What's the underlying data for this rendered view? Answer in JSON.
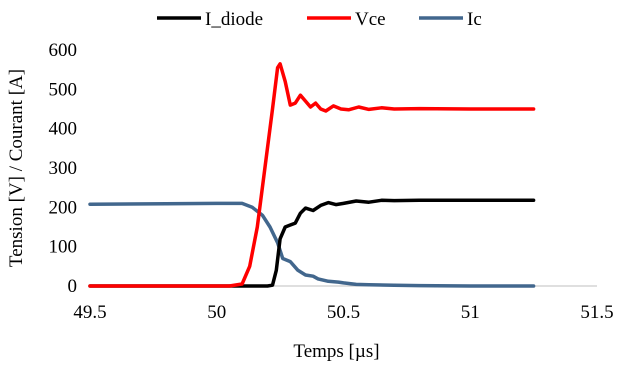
{
  "chart_data": {
    "type": "line",
    "title": "",
    "xlabel": "Temps [µs]",
    "ylabel": "Tension [V] / Courant [A]",
    "xlim": [
      49.5,
      51.5
    ],
    "ylim": [
      0,
      600
    ],
    "x_ticks": [
      49.5,
      50,
      50.5,
      51,
      51.5
    ],
    "x_tick_labels": [
      "49.5",
      "50",
      "50.5",
      "51",
      "51.5"
    ],
    "y_ticks": [
      0,
      100,
      200,
      300,
      400,
      500,
      600
    ],
    "y_tick_labels": [
      "0",
      "100",
      "200",
      "300",
      "400",
      "500",
      "600"
    ],
    "grid": false,
    "legend_position": "top",
    "series": [
      {
        "name": "I_diode",
        "color": "#000000",
        "points": [
          [
            49.5,
            0
          ],
          [
            50.0,
            0
          ],
          [
            50.2,
            0
          ],
          [
            50.22,
            2
          ],
          [
            50.235,
            40
          ],
          [
            50.25,
            120
          ],
          [
            50.27,
            150
          ],
          [
            50.29,
            155
          ],
          [
            50.31,
            160
          ],
          [
            50.33,
            185
          ],
          [
            50.35,
            198
          ],
          [
            50.38,
            192
          ],
          [
            50.41,
            205
          ],
          [
            50.44,
            212
          ],
          [
            50.47,
            207
          ],
          [
            50.5,
            210
          ],
          [
            50.55,
            216
          ],
          [
            50.6,
            213
          ],
          [
            50.65,
            218
          ],
          [
            50.7,
            217
          ],
          [
            50.8,
            218
          ],
          [
            51.0,
            218
          ],
          [
            51.25,
            218
          ]
        ]
      },
      {
        "name": "Vce",
        "color": "#ff0000",
        "points": [
          [
            49.5,
            0
          ],
          [
            50.05,
            0
          ],
          [
            50.1,
            5
          ],
          [
            50.13,
            50
          ],
          [
            50.16,
            150
          ],
          [
            50.19,
            300
          ],
          [
            50.22,
            450
          ],
          [
            50.24,
            555
          ],
          [
            50.25,
            565
          ],
          [
            50.27,
            520
          ],
          [
            50.29,
            460
          ],
          [
            50.31,
            465
          ],
          [
            50.33,
            485
          ],
          [
            50.35,
            470
          ],
          [
            50.37,
            455
          ],
          [
            50.39,
            465
          ],
          [
            50.41,
            450
          ],
          [
            50.43,
            445
          ],
          [
            50.46,
            458
          ],
          [
            50.49,
            450
          ],
          [
            50.52,
            448
          ],
          [
            50.56,
            455
          ],
          [
            50.6,
            449
          ],
          [
            50.65,
            453
          ],
          [
            50.7,
            450
          ],
          [
            50.8,
            451
          ],
          [
            51.0,
            450
          ],
          [
            51.25,
            450
          ]
        ]
      },
      {
        "name": "Ic",
        "color": "#42678d",
        "points": [
          [
            49.5,
            208
          ],
          [
            49.8,
            209
          ],
          [
            50.0,
            210
          ],
          [
            50.1,
            210
          ],
          [
            50.14,
            200
          ],
          [
            50.18,
            180
          ],
          [
            50.21,
            150
          ],
          [
            50.24,
            110
          ],
          [
            50.26,
            70
          ],
          [
            50.29,
            62
          ],
          [
            50.32,
            40
          ],
          [
            50.35,
            28
          ],
          [
            50.38,
            25
          ],
          [
            50.4,
            18
          ],
          [
            50.44,
            12
          ],
          [
            50.48,
            10
          ],
          [
            50.5,
            8
          ],
          [
            50.55,
            4
          ],
          [
            50.6,
            3
          ],
          [
            50.7,
            2
          ],
          [
            50.8,
            1
          ],
          [
            51.0,
            0
          ],
          [
            51.25,
            0
          ]
        ]
      }
    ]
  }
}
